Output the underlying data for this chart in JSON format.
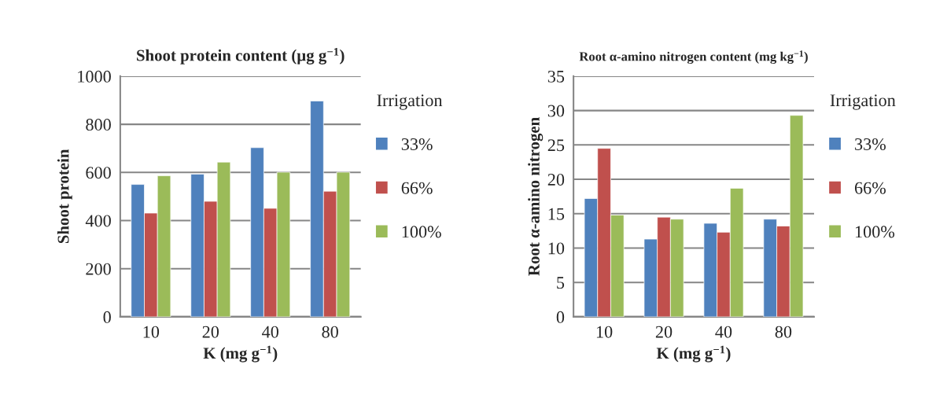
{
  "chart_data": [
    {
      "type": "bar",
      "title": "Shoot protein content (µg g$^{−1}$)",
      "xlabel": "K (mg g$^{−1}$)",
      "ylabel": "Shoot protein",
      "legend_title": "Irrigation",
      "categories": [
        "10",
        "20",
        "40",
        "80"
      ],
      "series": [
        {
          "name": "33%",
          "color": "#4f81bd",
          "values": [
            550,
            593,
            703,
            897
          ]
        },
        {
          "name": "66%",
          "color": "#c0504d",
          "values": [
            431,
            480,
            451,
            522
          ]
        },
        {
          "name": "100%",
          "color": "#9bbb59",
          "values": [
            586,
            643,
            601,
            601
          ]
        }
      ],
      "ylim": [
        0,
        1000
      ],
      "yticks": [
        0,
        200,
        400,
        600,
        800,
        1000
      ],
      "grid": "y",
      "legend": "right"
    },
    {
      "type": "bar",
      "title": "Root α-amino nitrogen content (mg kg$^{−1}$)",
      "xlabel": "K (mg g$^{−1}$)",
      "ylabel": "Root α-amino nitrogen",
      "legend_title": "Irrigation",
      "categories": [
        "10",
        "20",
        "40",
        "80"
      ],
      "series": [
        {
          "name": "33%",
          "color": "#4f81bd",
          "values": [
            17.2,
            11.3,
            13.6,
            14.2
          ]
        },
        {
          "name": "66%",
          "color": "#c0504d",
          "values": [
            24.5,
            14.5,
            12.3,
            13.2
          ]
        },
        {
          "name": "100%",
          "color": "#9bbb59",
          "values": [
            14.8,
            14.2,
            18.7,
            29.3
          ]
        }
      ],
      "ylim": [
        0,
        35
      ],
      "yticks": [
        0,
        5,
        10,
        15,
        20,
        25,
        30,
        35
      ],
      "grid": "y",
      "legend": "right"
    }
  ]
}
